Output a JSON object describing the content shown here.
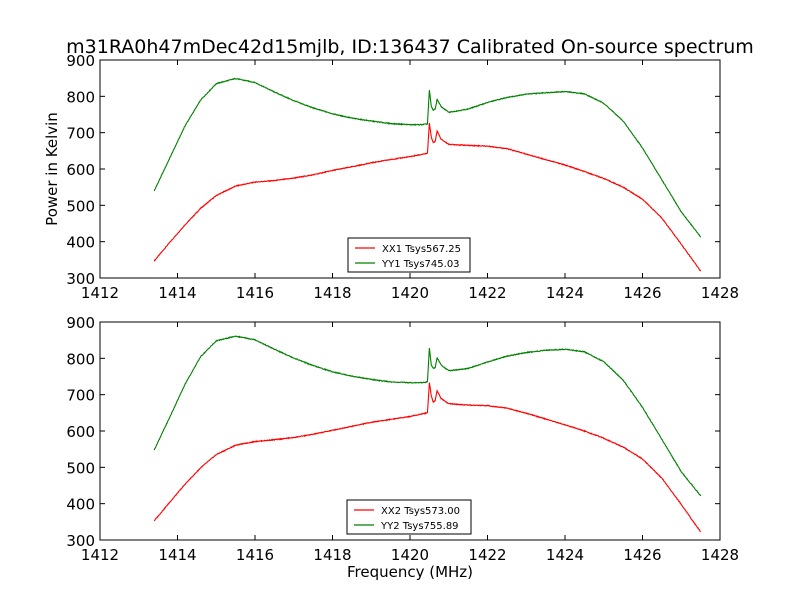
{
  "figure": {
    "title": "m31RA0h47mDec42d15mjlb, ID:136437 Calibrated On-source spectrum"
  },
  "colors": {
    "xx": "#ff0000",
    "yy": "#008000",
    "axes": "#000000",
    "background": "#ffffff"
  },
  "chart_data": [
    {
      "type": "line",
      "title": "",
      "xlabel": "",
      "ylabel": "Power in Kelvin",
      "xlim": [
        1412,
        1428
      ],
      "ylim": [
        300,
        900
      ],
      "xticks": [
        1412,
        1414,
        1416,
        1418,
        1420,
        1422,
        1424,
        1426,
        1428
      ],
      "yticks": [
        300,
        400,
        500,
        600,
        700,
        800,
        900
      ],
      "grid": false,
      "legend": "lower-center",
      "series": [
        {
          "name": "XX1 Tsys567.25",
          "color": "#ff0000",
          "x": [
            1413.4,
            1413.8,
            1414.2,
            1414.6,
            1415.0,
            1415.5,
            1416.0,
            1416.5,
            1417.0,
            1417.5,
            1418.0,
            1418.5,
            1419.0,
            1419.5,
            1420.0,
            1420.3,
            1420.45,
            1420.5,
            1420.55,
            1420.6,
            1420.65,
            1420.7,
            1420.8,
            1421.0,
            1421.5,
            1422.0,
            1422.5,
            1423.0,
            1423.5,
            1424.0,
            1424.5,
            1425.0,
            1425.5,
            1426.0,
            1426.5,
            1427.0,
            1427.5
          ],
          "values": [
            347,
            398,
            447,
            492,
            527,
            553,
            564,
            568,
            575,
            584,
            596,
            606,
            617,
            626,
            634,
            640,
            643,
            726,
            688,
            672,
            676,
            705,
            682,
            668,
            665,
            663,
            656,
            641,
            626,
            611,
            593,
            574,
            550,
            517,
            465,
            393,
            319
          ]
        },
        {
          "name": "YY1 Tsys745.03",
          "color": "#008000",
          "x": [
            1413.4,
            1413.8,
            1414.2,
            1414.6,
            1415.0,
            1415.5,
            1416.0,
            1416.5,
            1417.0,
            1417.5,
            1418.0,
            1418.5,
            1419.0,
            1419.5,
            1420.0,
            1420.3,
            1420.45,
            1420.5,
            1420.55,
            1420.6,
            1420.65,
            1420.7,
            1420.8,
            1421.0,
            1421.5,
            1422.0,
            1422.5,
            1423.0,
            1423.5,
            1424.0,
            1424.5,
            1425.0,
            1425.5,
            1426.0,
            1426.5,
            1427.0,
            1427.5
          ],
          "values": [
            540,
            630,
            720,
            790,
            835,
            849,
            838,
            812,
            788,
            768,
            752,
            740,
            732,
            725,
            722,
            722,
            724,
            817,
            772,
            762,
            765,
            792,
            772,
            756,
            765,
            783,
            797,
            806,
            810,
            813,
            807,
            781,
            732,
            658,
            570,
            482,
            413
          ]
        }
      ]
    },
    {
      "type": "line",
      "title": "",
      "xlabel": "Frequency (MHz)",
      "ylabel": "",
      "xlim": [
        1412,
        1428
      ],
      "ylim": [
        300,
        900
      ],
      "xticks": [
        1412,
        1414,
        1416,
        1418,
        1420,
        1422,
        1424,
        1426,
        1428
      ],
      "yticks": [
        300,
        400,
        500,
        600,
        700,
        800,
        900
      ],
      "grid": false,
      "legend": "lower-center",
      "series": [
        {
          "name": "XX2 Tsys573.00",
          "color": "#ff0000",
          "x": [
            1413.4,
            1413.8,
            1414.2,
            1414.6,
            1415.0,
            1415.5,
            1416.0,
            1416.5,
            1417.0,
            1417.5,
            1418.0,
            1418.5,
            1419.0,
            1419.5,
            1420.0,
            1420.3,
            1420.45,
            1420.5,
            1420.55,
            1420.6,
            1420.65,
            1420.7,
            1420.8,
            1421.0,
            1421.5,
            1422.0,
            1422.5,
            1423.0,
            1423.5,
            1424.0,
            1424.5,
            1425.0,
            1425.5,
            1426.0,
            1426.5,
            1427.0,
            1427.5
          ],
          "values": [
            353,
            404,
            454,
            499,
            535,
            561,
            571,
            576,
            582,
            591,
            602,
            613,
            624,
            632,
            640,
            647,
            650,
            733,
            697,
            680,
            684,
            711,
            690,
            675,
            671,
            670,
            663,
            649,
            633,
            617,
            600,
            580,
            556,
            523,
            470,
            398,
            322
          ]
        },
        {
          "name": "YY2 Tsys755.89",
          "color": "#008000",
          "x": [
            1413.4,
            1413.8,
            1414.2,
            1414.6,
            1415.0,
            1415.5,
            1416.0,
            1416.5,
            1417.0,
            1417.5,
            1418.0,
            1418.5,
            1419.0,
            1419.5,
            1420.0,
            1420.3,
            1420.45,
            1420.5,
            1420.55,
            1420.6,
            1420.65,
            1420.7,
            1420.8,
            1421.0,
            1421.5,
            1422.0,
            1422.5,
            1423.0,
            1423.5,
            1424.0,
            1424.5,
            1425.0,
            1425.5,
            1426.0,
            1426.5,
            1427.0,
            1427.5
          ],
          "values": [
            548,
            638,
            730,
            805,
            848,
            861,
            851,
            825,
            801,
            780,
            763,
            751,
            742,
            735,
            733,
            733,
            735,
            828,
            782,
            772,
            775,
            802,
            782,
            766,
            772,
            790,
            806,
            816,
            822,
            825,
            818,
            791,
            740,
            665,
            577,
            488,
            422
          ]
        }
      ]
    }
  ]
}
